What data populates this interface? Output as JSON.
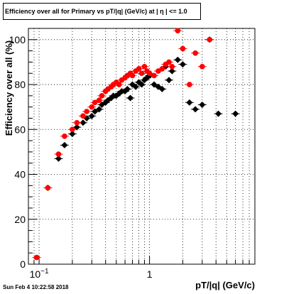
{
  "chart_data": {
    "type": "scatter",
    "title": "Efficiency over all for Primary vs pT/|q| (GeV/c) at | η | <= 1.0",
    "xlabel": "pT/|q| (GeV/c)",
    "ylabel": "Efficiency over all (%)",
    "x_scale": "log",
    "xlim": [
      0.08,
      9
    ],
    "ylim": [
      0,
      105
    ],
    "grid": true,
    "x_ticks": [
      {
        "value": 0.1,
        "label": "10",
        "exp": "−1"
      },
      {
        "value": 1,
        "label": "1",
        "exp": ""
      }
    ],
    "y_ticks": [
      0,
      20,
      40,
      60,
      80,
      100
    ],
    "y_tick_labels": [
      "0",
      "20",
      "40",
      "60",
      "80",
      "100"
    ],
    "colors": {
      "series_black": "#000000",
      "series_red": "#ff0000"
    },
    "series": [
      {
        "color": "black",
        "x": [
          0.12,
          0.15,
          0.17,
          0.2,
          0.22,
          0.25,
          0.27,
          0.3,
          0.32,
          0.35,
          0.37,
          0.4,
          0.42,
          0.45,
          0.47,
          0.5,
          0.53,
          0.56,
          0.6,
          0.63,
          0.67,
          0.7,
          0.75,
          0.8,
          0.85,
          0.9,
          0.95,
          1.0,
          1.1,
          1.2,
          1.3,
          1.4,
          1.5,
          1.6,
          1.8,
          2.0,
          2.3,
          2.6,
          3.0,
          3.5,
          4.2,
          6.0
        ],
        "y": [
          34,
          47,
          53,
          58,
          61,
          63,
          65,
          66,
          68,
          69,
          71,
          72,
          73,
          74,
          75,
          75,
          76,
          77,
          77,
          78,
          74,
          80,
          79,
          81,
          80,
          82,
          83,
          84,
          80,
          79,
          78,
          88,
          82,
          86,
          91,
          89,
          72,
          69,
          71,
          100,
          67,
          67
        ]
      },
      {
        "color": "red",
        "x": [
          0.095,
          0.12,
          0.15,
          0.17,
          0.2,
          0.22,
          0.25,
          0.27,
          0.3,
          0.32,
          0.35,
          0.37,
          0.4,
          0.42,
          0.45,
          0.47,
          0.5,
          0.53,
          0.56,
          0.6,
          0.63,
          0.67,
          0.7,
          0.75,
          0.8,
          0.85,
          0.9,
          0.95,
          1.0,
          1.1,
          1.2,
          1.3,
          1.4,
          1.5,
          1.6,
          1.8,
          2.0,
          2.3,
          2.6,
          3.0,
          3.5
        ],
        "y": [
          3,
          34,
          49,
          57,
          60,
          63,
          66,
          68,
          70,
          72,
          73,
          75,
          77,
          78,
          79,
          80,
          81,
          80,
          82,
          83,
          84,
          85,
          84,
          86,
          87,
          85,
          88,
          86,
          85,
          84,
          86,
          87,
          89,
          90,
          88,
          104,
          96,
          80,
          94,
          88,
          100
        ]
      }
    ]
  },
  "footer": "Sun Feb  4 10:22:58 2018"
}
